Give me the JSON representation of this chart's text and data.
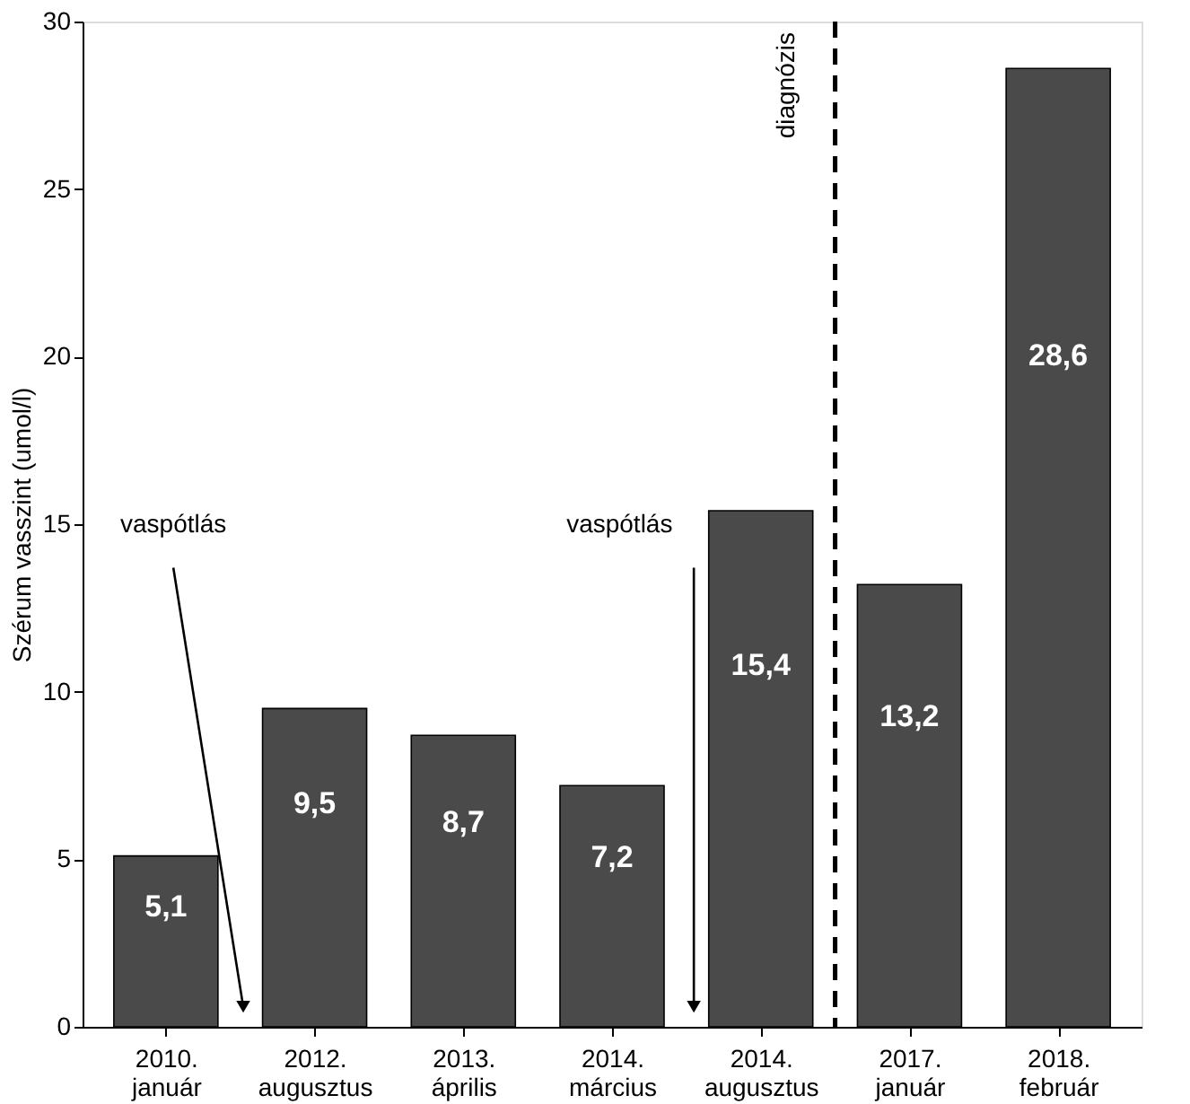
{
  "chart_data": {
    "type": "bar",
    "ylabel": "Szérum vasszint (umol/l)",
    "categories": [
      "2010. január",
      "2012. augusztus",
      "2013. április",
      "2014. március",
      "2014. augusztus",
      "2017. január",
      "2018. február"
    ],
    "values": [
      5.1,
      9.5,
      8.7,
      7.2,
      15.4,
      13.2,
      28.6
    ],
    "value_labels": [
      "5,1",
      "9,5",
      "8,7",
      "7,2",
      "15,4",
      "13,2",
      "28,6"
    ],
    "color": "#4a4a4a",
    "ylim": [
      0,
      30
    ],
    "yticks": [
      0,
      5,
      10,
      15,
      20,
      25,
      30
    ],
    "grid": false,
    "annotations": [
      "vaspótlás",
      "vaspótlás",
      "diagnózis"
    ]
  }
}
